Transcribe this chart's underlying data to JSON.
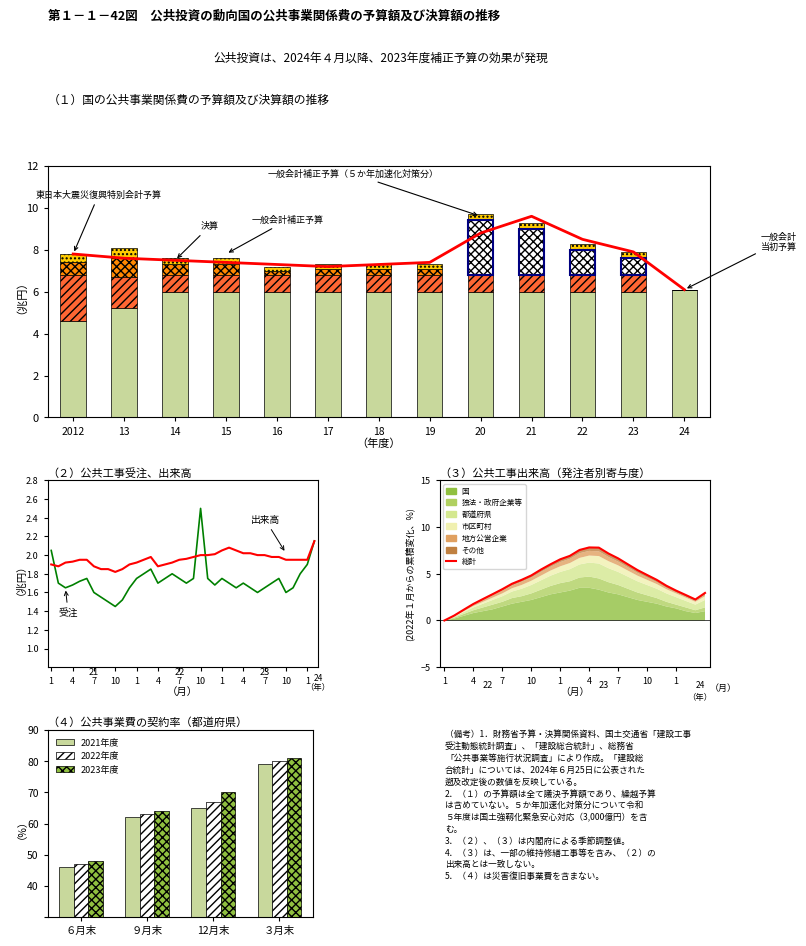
{
  "title_main": "第１－１－42図　公共投資の動向国の公共事業関係費の予算額及び決算額の推移",
  "title_sub": "公共投資は、2024年４月以降、2023年度補正予算の効果が発現",
  "chart1_title": "（１）国の公共事業関係費の予算額及び決算額の推移",
  "chart1_ylabel": "（兆円）",
  "chart1_xlabel": "（年度）",
  "chart1_years": [
    2012,
    2013,
    2014,
    2015,
    2016,
    2017,
    2018,
    2019,
    2020,
    2021,
    2022,
    2023,
    2024
  ],
  "chart1_base": [
    4.6,
    5.2,
    6.0,
    6.0,
    6.0,
    6.0,
    6.0,
    6.0,
    6.0,
    6.0,
    6.0,
    6.0,
    6.1
  ],
  "chart1_hatch1": [
    2.2,
    1.5,
    0.8,
    0.8,
    0.8,
    0.8,
    0.8,
    0.8,
    0.8,
    0.8,
    0.8,
    0.8,
    0.0
  ],
  "chart1_hatch2": [
    0.6,
    0.9,
    0.5,
    0.5,
    0.2,
    0.3,
    0.3,
    0.3,
    2.6,
    2.2,
    1.2,
    0.8,
    0.0
  ],
  "chart1_hatch3": [
    0.4,
    0.5,
    0.3,
    0.3,
    0.2,
    0.2,
    0.2,
    0.2,
    0.3,
    0.3,
    0.3,
    0.3,
    0.0
  ],
  "chart1_decision_line": [
    7.8,
    7.6,
    7.5,
    7.4,
    7.3,
    7.2,
    7.3,
    7.4,
    8.8,
    9.6,
    8.5,
    7.9,
    6.1
  ],
  "chart2_title": "（２）公共工事受注、出来高",
  "chart2_ylabel": "（兆円）",
  "chart2_xlabel": "（月）",
  "chart3_title": "（３）公共工事出来高（発注者別寄与度）",
  "chart3_ylabel": "(2022年１月からの累積変化、%)",
  "chart4_title": "（４）公共事業費の契約率（都道府県）",
  "chart4_ylabel": "（%）",
  "chart4_categories": [
    "６月末",
    "９月末",
    "12月末",
    "３月末"
  ],
  "chart4_2021": [
    46,
    62,
    65,
    79
  ],
  "chart4_2022": [
    47,
    63,
    67,
    80
  ],
  "chart4_2023": [
    48,
    64,
    70,
    81
  ],
  "footnote_title": "（備考）",
  "footnotes": [
    "1．財務省予算・決算関係資料、国土交通省「建設工事受注動態統計調査」、「建設総合統計」、総務省「公共事業等施行状況調査」により作成。「建設総合統計」については、2024年６月25日に公表された遡及改定後の数値を反映している。",
    "2．（１）の予算額は全て議決予算額であり、繰越予算は含めていない。５か年加速化対策分について令和５年度は国土強靱化緊急安心対応（3,000億円）を含む。",
    "3．（２）、（３）は内閣府による季節調整値。",
    "4．（３）は、一部の維持修繕工事等を含み、（２）の出来高とは一致しない。",
    "5．（４）は災害復旧事業費を含まない。"
  ],
  "color_base": "#c8d89c",
  "color_hatch1_fc": "#ff4400",
  "color_hatch2_fc": "#ff8800",
  "color_hatch3_fc": "#ffd700",
  "color_decision": "#cc0000",
  "bg_color": "#ffffff"
}
